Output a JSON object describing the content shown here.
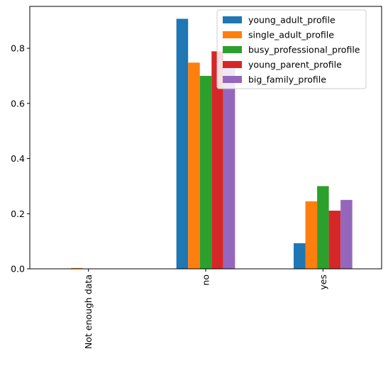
{
  "chart_data": {
    "type": "bar",
    "title": "",
    "xlabel": "",
    "ylabel": "",
    "categories": [
      "Not enough data",
      "no",
      "yes"
    ],
    "series": [
      {
        "name": "young_adult_profile",
        "color": "#1f77b4",
        "values": [
          0.0,
          0.907,
          0.093
        ]
      },
      {
        "name": "single_adult_profile",
        "color": "#ff7f0e",
        "values": [
          0.003,
          0.748,
          0.245
        ]
      },
      {
        "name": "busy_professional_profile",
        "color": "#2ca02c",
        "values": [
          0.0,
          0.7,
          0.3
        ]
      },
      {
        "name": "young_parent_profile",
        "color": "#d62728",
        "values": [
          0.0,
          0.789,
          0.211
        ]
      },
      {
        "name": "big_family_profile",
        "color": "#9467bd",
        "values": [
          0.0,
          0.75,
          0.25
        ]
      }
    ],
    "ylim": [
      0,
      0.952
    ],
    "yticks": [
      0.0,
      0.2,
      0.4,
      0.6,
      0.8
    ],
    "ytick_labels": [
      "0.0",
      "0.2",
      "0.4",
      "0.6",
      "0.8"
    ],
    "grid": false,
    "legend_position": "top-right"
  }
}
